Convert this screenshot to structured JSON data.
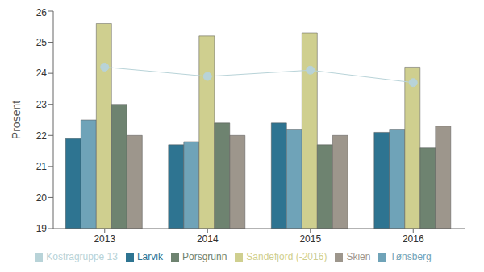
{
  "chart_data": {
    "type": "bar",
    "y_label": "Prosent",
    "categories": [
      "2013",
      "2014",
      "2015",
      "2016"
    ],
    "ylim": [
      19,
      26
    ],
    "yticks": [
      19,
      20,
      21,
      22,
      23,
      24,
      25,
      26
    ],
    "grid": false,
    "legend": "bottom",
    "series": [
      {
        "name": "Larvik",
        "type": "bar",
        "color": "#2e7491",
        "values": [
          21.9,
          21.7,
          22.4,
          22.1
        ]
      },
      {
        "name": "Tønsberg",
        "type": "bar",
        "color": "#6fa3b8",
        "values": [
          22.5,
          21.8,
          22.2,
          22.2
        ]
      },
      {
        "name": "Sandefjord (-2016)",
        "type": "bar",
        "color": "#cfcf8f",
        "values": [
          25.6,
          25.2,
          25.3,
          24.2
        ]
      },
      {
        "name": "Porsgrunn",
        "type": "bar",
        "color": "#6e8370",
        "values": [
          23.0,
          22.4,
          21.7,
          21.6
        ]
      },
      {
        "name": "Skien",
        "type": "bar",
        "color": "#9d968c",
        "values": [
          22.0,
          22.0,
          22.0,
          22.3
        ]
      },
      {
        "name": "Kostragruppe 13",
        "type": "line",
        "color": "#b8d3d8",
        "marker": "circle",
        "values": [
          24.2,
          23.9,
          24.1,
          23.7
        ]
      }
    ]
  }
}
